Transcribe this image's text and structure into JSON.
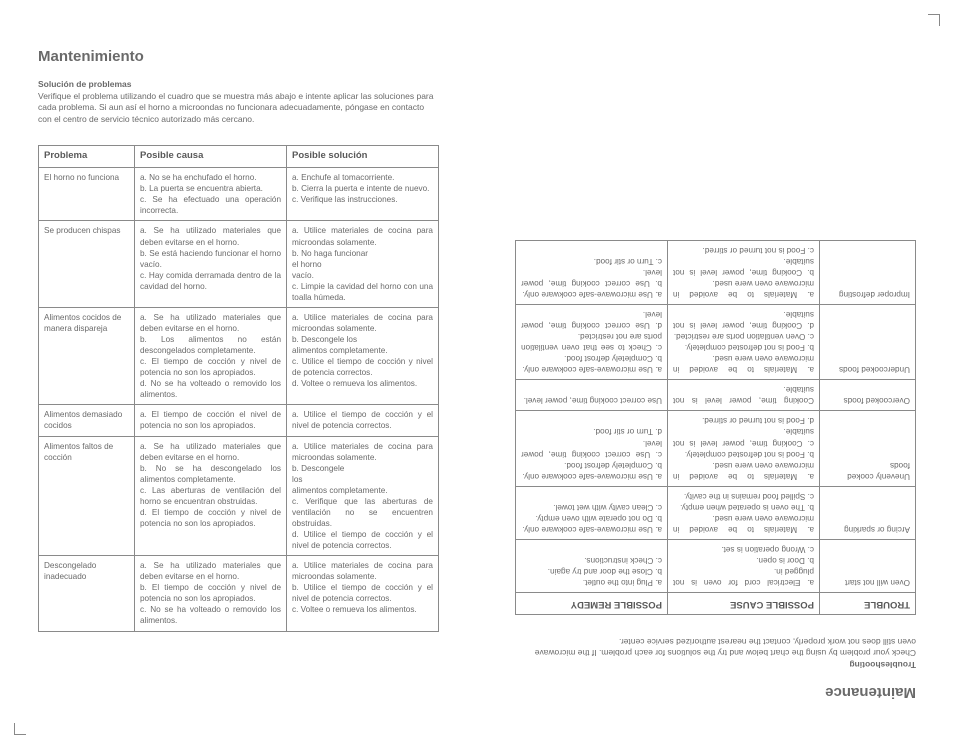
{
  "left": {
    "title": "Mantenimiento",
    "subtitle": "Solución de problemas",
    "intro": "Verifique el problema utilizando el cuadro que se muestra más abajo e intente aplicar las soluciones para cada problema. Si aun así el horno a microondas no funcionara adecuadamente, póngase en contacto con el centro de servicio técnico autorizado más cercano.",
    "headers": [
      "Problema",
      "Posible causa",
      "Posible solución"
    ],
    "rows": [
      [
        "El horno no funciona",
        "a. No se ha enchufado el horno.\nb. La puerta se encuentra abierta.\nc. Se ha efectuado una operación incorrecta.",
        "a. Enchufe al tomacorriente.\nb. Cierra la puerta e intente de nuevo.\nc. Verifique las instrucciones."
      ],
      [
        "Se producen chispas",
        "a. Se ha utilizado materiales que deben evitarse en el horno.\nb. Se está haciendo funcionar el horno vacío.\nc. Hay comida derramada dentro de la cavidad del horno.",
        "a. Utilice materiales de cocina para microondas solamente.\nb. No haga funcionar\nel horno\nvacío.\nc. Limpie la cavidad del horno con una toalla húmeda."
      ],
      [
        "Alimentos cocidos de manera dispareja",
        "a. Se ha utilizado materiales que deben evitarse en el horno.\nb. Los alimentos no están descongelados completamente.\nc. El tiempo de cocción y nivel de potencia no son los apropiados.\nd. No se ha volteado o removido los alimentos.",
        "a. Utilice materiales de cocina para microondas solamente.\nb. Descongele los\nalimentos completamente.\nc. Utilice el tiempo de cocción y nivel de potencia correctos.\nd. Voltee o remueva los alimentos."
      ],
      [
        "Alimentos demasiado cocidos",
        "a. El tiempo de cocción el nivel de potencia no son los apropiados.",
        "a. Utilice el tiempo de cocción y el nivel de potencia correctos."
      ],
      [
        "Alimentos faltos de cocción",
        "a. Se ha utilizado materiales que deben evitarse en el horno.\nb. No se ha descongelado los alimentos completamente.\nc. Las aberturas de ventilación del horno se encuentran obstruidas.\nd. El tiempo de cocción y nivel de potencia no son los apropiados.",
        "a. Utilice materiales de cocina para microondas solamente.\nb. Descongele\nlos\nalimentos completamente.\nc. Verifique que las aberturas de ventilación no se encuentren obstruidas.\nd. Utilice el tiempo de cocción y el nivel de potencia correctos."
      ],
      [
        "Descongelado inadecuado",
        "a. Se ha utilizado materiales que deben evitarse en el horno.\nb. El tiempo de cocción y nivel de potencia no son los apropiados.\nc. No se ha volteado o removido los alimentos.",
        "a. Utilice materiales de cocina para microondas solamente.\nb. Utilice el tiempo de cocción y el nivel de potencia correctos.\nc. Voltee o remueva los alimentos."
      ]
    ]
  },
  "right": {
    "title": "Maintenance",
    "subtitle": "Troubleshooting",
    "intro": "Check your problem by using the chart below and try the solutions for each problem. If the microwave oven still does not work properly, contact the nearest authorized service center.",
    "headers": [
      "TROUBLE",
      "POSSIBLE CAUSE",
      "POSSIBLE REMEDY"
    ],
    "rows": [
      [
        "Oven will not start",
        "a. Electrical cord for oven is not plugged in.\nb. Door is open.\nc. Wrong operation is set.",
        "a. Plug into the outlet.\nb. Close the door and try again.\nc. Check instructions."
      ],
      [
        "Arcing or sparking",
        "a. Materials to be avoided in microwave oven were used.\nb. The oven is operated when empty.\nc. Spilled food remains in the cavity.",
        "a. Use microwave-safe cookware only.\nb. Do not operate with oven empty.\nc. Clean cavity with wet towel."
      ],
      [
        "Unevenly cooked foods",
        "a. Materials to be avoided in microwave oven were used.\nb. Food is not defrosted completely.\nc. Cooking time, power level is not suitable.\nd. Food is not turned or stirred.",
        "a. Use microwave-safe cookware only.\nb. Completely defrost food.\nc. Use correct cooking time, power level.\nd. Turn or stir food."
      ],
      [
        "Overcooked foods",
        "Cooking time, power level is not suitable.",
        "Use correct cooking time, power level."
      ],
      [
        "Undercooked foods",
        "a. Materials to be avoided in microwave oven were used.\nb. Food is not defrosted completely.\nc. Oven ventilation ports are restricted.\nd. Cooking time, power level is not suitable.",
        "a. Use microwave-safe cookware only.\nb. Completely defrost food.\nc. Check to see that oven ventilation ports are not restricted.\nd. Use correct cooking time, power level."
      ],
      [
        "Improper defrosting",
        "a. Materials to be avoided in microwave oven were used.\nb. Cooking time, power level is not suitable.\nc. Food is not turned or stirred.",
        "a. Use microwave-safe cookware only.\nb. Use correct cooking time, power level.\nc. Turn or stir food."
      ]
    ]
  },
  "colwidths": [
    "24%",
    "38%",
    "38%"
  ],
  "colors": {
    "text": "#6a6a6a",
    "border": "#8a8a8a",
    "heading": "#595959"
  }
}
